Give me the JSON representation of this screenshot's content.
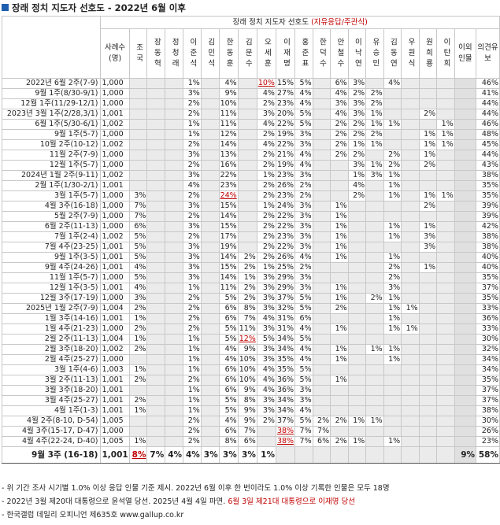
{
  "title": "장래 정치 지도자 선호도 - 2022년 6월 이후",
  "table": {
    "header": {
      "main": "장래 정치 지도자 선호도",
      "note": "(자유응답/주관식)",
      "n": "사례수(명)",
      "columns": [
        "조국",
        "장동혁",
        "정청래",
        "이준석",
        "김민석",
        "한동훈",
        "김문수",
        "오세훈",
        "이재명",
        "홍준표",
        "한덕수",
        "안철수",
        "이낙연",
        "유승민",
        "김동연",
        "우원식",
        "원희룡",
        "이탄희",
        "이외인물",
        "의견유보"
      ]
    },
    "groups": [
      [
        {
          "label": "2022년 6월 2주(7-9)",
          "n": "1,000",
          "cells": [
            null,
            null,
            null,
            "1%",
            null,
            "4%",
            null,
            "10%",
            "15%",
            "5%",
            null,
            "6%",
            "3%",
            null,
            "4%",
            null,
            null,
            null,
            null,
            "46%"
          ],
          "highlight": 7
        },
        {
          "label": "9월 1주(8/30-9/1)",
          "n": "1,000",
          "cells": [
            null,
            null,
            null,
            "3%",
            null,
            "9%",
            null,
            "4%",
            "27%",
            "4%",
            null,
            "4%",
            "2%",
            "2%",
            null,
            null,
            null,
            null,
            null,
            "41%"
          ]
        },
        {
          "label": "12월 1주(11/29-12/1)",
          "n": "1,000",
          "cells": [
            null,
            null,
            null,
            "2%",
            null,
            "10%",
            null,
            "2%",
            "23%",
            "4%",
            null,
            "3%",
            "3%",
            "2%",
            null,
            null,
            null,
            null,
            null,
            "44%"
          ]
        }
      ],
      [
        {
          "label": "2023년 3월 1주(2/28,3/1)",
          "n": "1,001",
          "cells": [
            null,
            null,
            null,
            "2%",
            null,
            "11%",
            null,
            "3%",
            "20%",
            "5%",
            null,
            "4%",
            "3%",
            "1%",
            null,
            null,
            "2%",
            null,
            null,
            "44%"
          ]
        },
        {
          "label": "6월 1주(5/30-6/1)",
          "n": "1,002",
          "cells": [
            null,
            null,
            null,
            "1%",
            null,
            "11%",
            null,
            "4%",
            "22%",
            "5%",
            null,
            "2%",
            "2%",
            "1%",
            "1%",
            null,
            null,
            "1%",
            null,
            "46%"
          ]
        },
        {
          "label": "9월 1주(5-7)",
          "n": "1,000",
          "cells": [
            null,
            null,
            null,
            "1%",
            null,
            "12%",
            null,
            "2%",
            "19%",
            "3%",
            null,
            "2%",
            "2%",
            "2%",
            null,
            null,
            "1%",
            "1%",
            null,
            "48%"
          ]
        },
        {
          "label": "10월 2주(10-12)",
          "n": "1,002",
          "cells": [
            null,
            null,
            null,
            "2%",
            null,
            "14%",
            null,
            "4%",
            "22%",
            "3%",
            null,
            "2%",
            "1%",
            "1%",
            null,
            null,
            "1%",
            "1%",
            null,
            "45%"
          ]
        },
        {
          "label": "11월 2주(7-9)",
          "n": "1,000",
          "cells": [
            null,
            null,
            null,
            "3%",
            null,
            "13%",
            null,
            "2%",
            "21%",
            "4%",
            null,
            "2%",
            "2%",
            null,
            "2%",
            null,
            "1%",
            null,
            null,
            "44%"
          ]
        },
        {
          "label": "12월 1주(5-7)",
          "n": "1,000",
          "cells": [
            null,
            null,
            null,
            "2%",
            null,
            "16%",
            null,
            "2%",
            "19%",
            "4%",
            null,
            null,
            "3%",
            "1%",
            "2%",
            null,
            "2%",
            null,
            null,
            "43%"
          ]
        }
      ],
      [
        {
          "label": "2024년 1월 2주(9-11)",
          "n": "1,002",
          "cells": [
            null,
            null,
            null,
            "3%",
            null,
            "22%",
            null,
            "1%",
            "23%",
            "3%",
            null,
            null,
            "1%",
            "3%",
            "1%",
            null,
            null,
            null,
            null,
            "38%"
          ]
        },
        {
          "label": "2월 1주(1/30-2/1)",
          "n": "1,001",
          "cells": [
            null,
            null,
            null,
            "4%",
            null,
            "23%",
            null,
            "2%",
            "26%",
            "2%",
            null,
            null,
            "4%",
            null,
            "1%",
            null,
            null,
            null,
            null,
            "35%"
          ]
        },
        {
          "label": "3월 1주(5-7)",
          "n": "1,000",
          "cells": [
            "3%",
            null,
            null,
            "2%",
            null,
            "24%",
            null,
            "2%",
            "23%",
            "2%",
            null,
            null,
            "2%",
            null,
            "1%",
            null,
            "1%",
            "1%",
            null,
            "35%"
          ],
          "highlight": 5
        },
        {
          "label": "4월 3주(16-18)",
          "n": "1,000",
          "cells": [
            "7%",
            null,
            null,
            "3%",
            null,
            "15%",
            null,
            "1%",
            "24%",
            "3%",
            null,
            "1%",
            null,
            null,
            null,
            null,
            "2%",
            null,
            null,
            "39%"
          ]
        },
        {
          "label": "5월 2주(7-9)",
          "n": "1,000",
          "cells": [
            "7%",
            null,
            null,
            "2%",
            null,
            "14%",
            null,
            "2%",
            "22%",
            "3%",
            null,
            "1%",
            null,
            null,
            null,
            null,
            null,
            null,
            null,
            "39%"
          ]
        },
        {
          "label": "6월 2주(11-13)",
          "n": "1,000",
          "cells": [
            "6%",
            null,
            null,
            "3%",
            null,
            "15%",
            null,
            "2%",
            "22%",
            "3%",
            null,
            "1%",
            null,
            null,
            "1%",
            null,
            "1%",
            null,
            null,
            "42%"
          ]
        },
        {
          "label": "7월 1주(2-4)",
          "n": "1,002",
          "cells": [
            "5%",
            null,
            null,
            "2%",
            null,
            "17%",
            null,
            "2%",
            "23%",
            "3%",
            null,
            "1%",
            null,
            null,
            "1%",
            null,
            "3%",
            null,
            null,
            "38%"
          ]
        },
        {
          "label": "7월 4주(23-25)",
          "n": "1,001",
          "cells": [
            "5%",
            null,
            null,
            "3%",
            null,
            "19%",
            null,
            "2%",
            "22%",
            "3%",
            null,
            "1%",
            null,
            null,
            null,
            null,
            "3%",
            null,
            null,
            "38%"
          ]
        },
        {
          "label": "9월 1주(3-5)",
          "n": "1,001",
          "cells": [
            "5%",
            null,
            null,
            "3%",
            null,
            "14%",
            "2%",
            "2%",
            "26%",
            "4%",
            null,
            "1%",
            null,
            null,
            "1%",
            null,
            null,
            null,
            null,
            "40%"
          ]
        },
        {
          "label": "9월 4주(24-26)",
          "n": "1,001",
          "cells": [
            "4%",
            null,
            null,
            "3%",
            null,
            "15%",
            "2%",
            "1%",
            "25%",
            "2%",
            null,
            null,
            null,
            null,
            "2%",
            null,
            "1%",
            null,
            null,
            "40%"
          ]
        },
        {
          "label": "11월 1주(5-7)",
          "n": "1,000",
          "cells": [
            "5%",
            null,
            null,
            "3%",
            null,
            "14%",
            "1%",
            "3%",
            "29%",
            "3%",
            null,
            null,
            null,
            null,
            "2%",
            null,
            null,
            null,
            null,
            "35%"
          ]
        },
        {
          "label": "12월 1주(3-5)",
          "n": "1,001",
          "cells": [
            "4%",
            null,
            null,
            "1%",
            null,
            "11%",
            "2%",
            "3%",
            "29%",
            "3%",
            null,
            "1%",
            null,
            null,
            "3%",
            null,
            null,
            null,
            null,
            "37%"
          ]
        },
        {
          "label": "12월 3주(17-19)",
          "n": "1,000",
          "cells": [
            "3%",
            null,
            null,
            "2%",
            null,
            "5%",
            "2%",
            "3%",
            "37%",
            "5%",
            null,
            "1%",
            null,
            "2%",
            "1%",
            null,
            null,
            null,
            null,
            "35%"
          ]
        }
      ],
      [
        {
          "label": "2025년 1월 2주(7-9)",
          "n": "1,004",
          "cells": [
            "2%",
            null,
            null,
            "2%",
            null,
            "6%",
            "8%",
            "3%",
            "32%",
            "5%",
            null,
            "2%",
            null,
            null,
            "1%",
            "1%",
            null,
            null,
            null,
            "33%"
          ]
        },
        {
          "label": "1월 3주(14-16)",
          "n": "1,001",
          "cells": [
            "1%",
            null,
            null,
            "2%",
            null,
            "6%",
            "7%",
            "4%",
            "31%",
            "6%",
            null,
            null,
            null,
            null,
            "1%",
            null,
            null,
            null,
            null,
            "36%"
          ]
        },
        {
          "label": "1월 4주(21-23)",
          "n": "1,000",
          "cells": [
            "2%",
            null,
            null,
            "2%",
            null,
            "5%",
            "11%",
            "3%",
            "31%",
            "4%",
            null,
            "1%",
            null,
            null,
            "1%",
            "1%",
            null,
            null,
            null,
            "33%"
          ]
        }
      ],
      [
        {
          "label": "2월 2주(11-13)",
          "n": "1,004",
          "cells": [
            "1%",
            null,
            null,
            "1%",
            null,
            "5%",
            "12%",
            "5%",
            "34%",
            "5%",
            null,
            null,
            null,
            null,
            null,
            null,
            null,
            null,
            null,
            "30%"
          ],
          "highlight": 6
        },
        {
          "label": "2월 3주(18-20)",
          "n": "1,002",
          "cells": [
            "2%",
            null,
            null,
            "1%",
            null,
            "4%",
            "9%",
            "3%",
            "34%",
            "4%",
            null,
            "1%",
            null,
            "1%",
            "1%",
            null,
            null,
            null,
            null,
            "32%"
          ]
        },
        {
          "label": "2월 4주(25-27)",
          "n": "1,000",
          "cells": [
            null,
            null,
            null,
            "1%",
            null,
            "4%",
            "10%",
            "3%",
            "35%",
            "4%",
            null,
            "1%",
            null,
            null,
            "1%",
            null,
            null,
            null,
            null,
            "34%"
          ]
        }
      ],
      [
        {
          "label": "3월 1주(4-6)",
          "n": "1,003",
          "cells": [
            "1%",
            null,
            null,
            "1%",
            null,
            "6%",
            "10%",
            "4%",
            "35%",
            "5%",
            null,
            null,
            null,
            null,
            null,
            null,
            null,
            null,
            null,
            "34%"
          ]
        },
        {
          "label": "3월 2주(11-13)",
          "n": "1,001",
          "cells": [
            "2%",
            null,
            null,
            "2%",
            null,
            "6%",
            "10%",
            "4%",
            "36%",
            "5%",
            null,
            "1%",
            null,
            null,
            null,
            null,
            null,
            null,
            null,
            "35%"
          ]
        },
        {
          "label": "3월 3주(18-20)",
          "n": "1,001",
          "cells": [
            null,
            null,
            null,
            "1%",
            null,
            "6%",
            "9%",
            "4%",
            "36%",
            "3%",
            null,
            null,
            null,
            null,
            null,
            null,
            null,
            null,
            null,
            "37%"
          ]
        },
        {
          "label": "3월 4주(25-27)",
          "n": "1,001",
          "cells": [
            "2%",
            null,
            null,
            "1%",
            null,
            "5%",
            "8%",
            "3%",
            "34%",
            "3%",
            null,
            null,
            null,
            null,
            null,
            null,
            null,
            null,
            null,
            "37%"
          ]
        }
      ],
      [
        {
          "label": "4월 1주(1-3)",
          "n": "1,001",
          "cells": [
            "1%",
            null,
            null,
            "1%",
            null,
            "5%",
            "9%",
            "3%",
            "34%",
            "4%",
            null,
            null,
            null,
            null,
            null,
            null,
            null,
            null,
            null,
            "38%"
          ]
        },
        {
          "label": "4월 2주(8-10, D-54)",
          "n": "1,005",
          "cells": [
            null,
            null,
            null,
            "2%",
            null,
            "4%",
            "9%",
            "2%",
            "37%",
            "5%",
            "2%",
            "2%",
            "1%",
            "1%",
            null,
            null,
            null,
            null,
            null,
            "30%"
          ]
        },
        {
          "label": "4월 3주(15-17, D-47)",
          "n": "1,000",
          "cells": [
            null,
            null,
            null,
            "2%",
            null,
            "6%",
            "7%",
            null,
            "38%",
            "7%",
            "7%",
            null,
            null,
            null,
            null,
            null,
            null,
            null,
            null,
            "26%"
          ],
          "highlight": 8
        },
        {
          "label": "4월 4주(22-24, D-40)",
          "n": "1,005",
          "cells": [
            "1%",
            null,
            null,
            "2%",
            null,
            "8%",
            "6%",
            null,
            "38%",
            "7%",
            "6%",
            "2%",
            "1%",
            null,
            "1%",
            null,
            null,
            null,
            null,
            "23%"
          ],
          "highlight": 8
        }
      ]
    ],
    "latest": {
      "label": "9월 3주 (16-18)",
      "n": "1,001",
      "cells": [
        "8%",
        "7%",
        "4%",
        "4%",
        "3%",
        "3%",
        "3%",
        "1%",
        null,
        null,
        null,
        null,
        null,
        null,
        null,
        null,
        null,
        null,
        "9%",
        "58%"
      ],
      "highlight": 0
    }
  },
  "notes": [
    {
      "text": "- 위 기간 조사 시기별 1.0% 이상 응답 인물 기준 제시. 2022년 6월 이후 한 번이라도 1.0% 이상 기록한 인물은 모두 18명"
    },
    {
      "text": "- 2022년 3월 제20대 대통령으로 윤석열 당선. 2025년 4월 4일 파면.",
      "red": " 6월 3일 제21대 대통령으로 이재명 당선"
    },
    {
      "text": "- 한국갤럽 데일리 오피니언 제635호 www.gallup.co.kr"
    }
  ]
}
